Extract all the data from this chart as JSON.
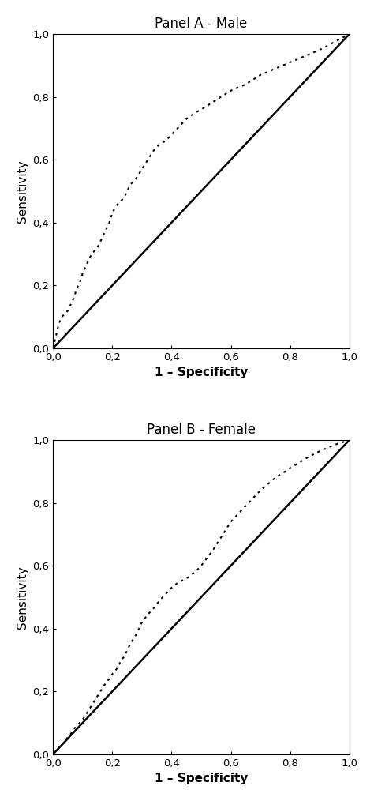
{
  "panel_a_title": "Panel A - Male",
  "panel_b_title": "Panel B - Female",
  "xlabel": "1 – Specificity",
  "ylabel": "Sensitivity",
  "xlim": [
    0.0,
    1.0
  ],
  "ylim": [
    0.0,
    1.0
  ],
  "xticks": [
    0.0,
    0.2,
    0.4,
    0.6,
    0.8,
    1.0
  ],
  "yticks": [
    0.0,
    0.2,
    0.4,
    0.6,
    0.8,
    1.0
  ],
  "tick_labels": [
    "0,0",
    "0,2",
    "0,4",
    "0,6",
    "0,8",
    "1,0"
  ],
  "background_color": "#ffffff",
  "roc_color": "#000000",
  "diag_color": "#000000",
  "roc_linestyle": "dotted",
  "roc_linewidth": 1.5,
  "diag_linewidth": 1.8,
  "panel_a_roc_x": [
    0.0,
    0.005,
    0.01,
    0.015,
    0.02,
    0.025,
    0.03,
    0.04,
    0.05,
    0.06,
    0.07,
    0.08,
    0.09,
    0.095,
    0.1,
    0.105,
    0.11,
    0.12,
    0.13,
    0.14,
    0.15,
    0.155,
    0.16,
    0.165,
    0.17,
    0.18,
    0.19,
    0.2,
    0.21,
    0.22,
    0.23,
    0.24,
    0.25,
    0.26,
    0.27,
    0.28,
    0.3,
    0.32,
    0.34,
    0.36,
    0.38,
    0.4,
    0.42,
    0.45,
    0.48,
    0.5,
    0.55,
    0.6,
    0.65,
    0.7,
    0.75,
    0.8,
    0.85,
    0.9,
    0.95,
    1.0
  ],
  "panel_a_roc_y": [
    0.0,
    0.02,
    0.04,
    0.06,
    0.08,
    0.09,
    0.1,
    0.11,
    0.12,
    0.14,
    0.16,
    0.19,
    0.21,
    0.22,
    0.24,
    0.25,
    0.26,
    0.28,
    0.3,
    0.31,
    0.32,
    0.33,
    0.34,
    0.35,
    0.36,
    0.38,
    0.4,
    0.43,
    0.45,
    0.46,
    0.47,
    0.48,
    0.5,
    0.52,
    0.53,
    0.54,
    0.57,
    0.6,
    0.63,
    0.65,
    0.66,
    0.68,
    0.7,
    0.73,
    0.75,
    0.76,
    0.79,
    0.82,
    0.84,
    0.87,
    0.89,
    0.91,
    0.93,
    0.95,
    0.975,
    1.0
  ],
  "panel_b_roc_x": [
    0.0,
    0.005,
    0.01,
    0.015,
    0.02,
    0.03,
    0.04,
    0.05,
    0.06,
    0.07,
    0.08,
    0.09,
    0.1,
    0.11,
    0.12,
    0.13,
    0.14,
    0.15,
    0.16,
    0.17,
    0.18,
    0.19,
    0.2,
    0.21,
    0.22,
    0.23,
    0.24,
    0.25,
    0.26,
    0.27,
    0.28,
    0.29,
    0.3,
    0.32,
    0.34,
    0.36,
    0.38,
    0.4,
    0.42,
    0.44,
    0.46,
    0.48,
    0.5,
    0.52,
    0.54,
    0.56,
    0.58,
    0.6,
    0.65,
    0.7,
    0.75,
    0.8,
    0.85,
    0.9,
    0.95,
    1.0
  ],
  "panel_b_roc_y": [
    0.0,
    0.005,
    0.01,
    0.015,
    0.02,
    0.03,
    0.04,
    0.055,
    0.065,
    0.08,
    0.09,
    0.1,
    0.11,
    0.125,
    0.14,
    0.155,
    0.17,
    0.185,
    0.2,
    0.215,
    0.23,
    0.24,
    0.255,
    0.265,
    0.28,
    0.3,
    0.31,
    0.33,
    0.35,
    0.365,
    0.38,
    0.4,
    0.42,
    0.445,
    0.465,
    0.49,
    0.51,
    0.53,
    0.545,
    0.555,
    0.565,
    0.58,
    0.6,
    0.625,
    0.65,
    0.68,
    0.71,
    0.74,
    0.79,
    0.84,
    0.88,
    0.91,
    0.94,
    0.965,
    0.985,
    1.0
  ],
  "title_fontsize": 12,
  "label_fontsize": 11,
  "tick_fontsize": 9.5,
  "figsize": [
    4.74,
    10.14
  ],
  "dpi": 100
}
